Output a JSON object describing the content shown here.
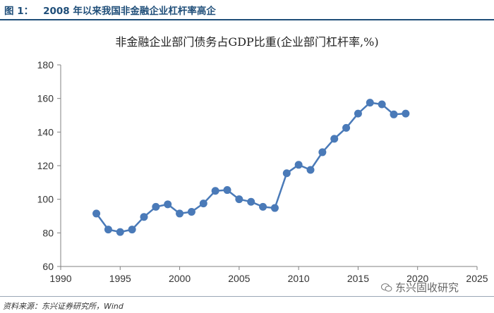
{
  "figure": {
    "label": "图 1：",
    "title": "2008 年以来我国非金融企业杠杆率高企",
    "source": "资料来源：东兴证券研究所，Wind",
    "watermark": "东兴固收研究"
  },
  "colors": {
    "series": "#4a7ab8",
    "title": "#1f4e79",
    "axis": "#808080"
  },
  "chart_data": {
    "type": "scatter",
    "mode": "lines+markers",
    "title": "非金融企业部门债务占GDP比重(企业部门杠杆率,%)",
    "xlabel": "",
    "ylabel": "",
    "xlim": [
      1990,
      2025
    ],
    "ylim": [
      60,
      180
    ],
    "xticks": [
      1990,
      1995,
      2000,
      2005,
      2010,
      2015,
      2020,
      2025
    ],
    "yticks": [
      60,
      80,
      100,
      120,
      140,
      160,
      180
    ],
    "grid": false,
    "legend": "none",
    "series": [
      {
        "x": [
          1993,
          1994,
          1995,
          1996,
          1997,
          1998,
          1999,
          2000,
          2001,
          2002,
          2003,
          2004,
          2005,
          2006,
          2007,
          2008,
          2009,
          2010,
          2011,
          2012,
          2013,
          2014,
          2015,
          2016,
          2017,
          2018,
          2019
        ],
        "y": [
          91.5,
          82,
          80.5,
          82,
          89.5,
          95.5,
          97,
          91.5,
          92.5,
          97.5,
          105,
          105.5,
          100,
          98.5,
          95.5,
          94.8,
          115.5,
          120.5,
          117.5,
          128,
          136,
          142.5,
          151,
          157.5,
          156.5,
          150.5,
          151
        ]
      }
    ]
  }
}
